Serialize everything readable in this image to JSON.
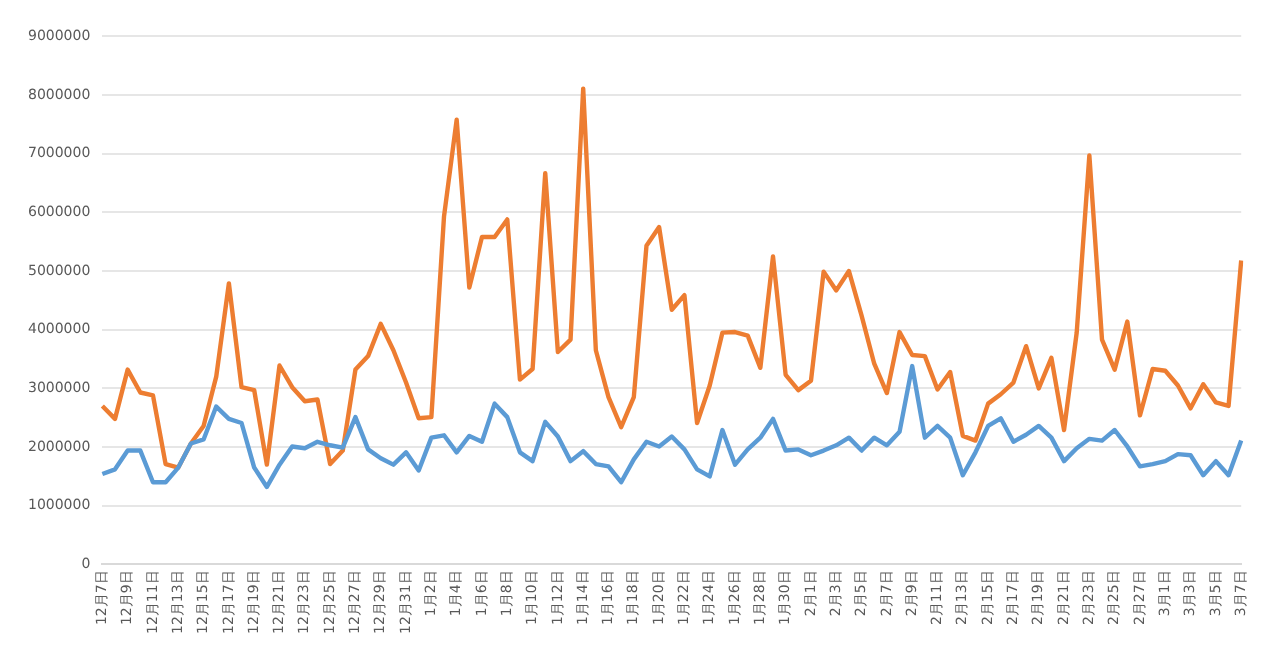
{
  "chart_data": {
    "type": "line",
    "categories": [
      "12月7日",
      null,
      "12月9日",
      null,
      "12月11日",
      null,
      "12月13日",
      null,
      "12月15日",
      null,
      "12月17日",
      null,
      "12月19日",
      null,
      "12月21日",
      null,
      "12月23日",
      null,
      "12月25日",
      null,
      "12月27日",
      null,
      "12月29日",
      null,
      "12月31日",
      null,
      "1月2日",
      null,
      "1月4日",
      null,
      "1月6日",
      null,
      "1月8日",
      null,
      "1月10日",
      null,
      "1月12日",
      null,
      "1月14日",
      null,
      "1月16日",
      null,
      "1月18日",
      null,
      "1月20日",
      null,
      "1月22日",
      null,
      "1月24日",
      null,
      "1月26日",
      null,
      "1月28日",
      null,
      "1月30日",
      null,
      "2月1日",
      null,
      "2月3日",
      null,
      "2月5日",
      null,
      "2月7日",
      null,
      "2月9日",
      null,
      "2月11日",
      null,
      "2月13日",
      null,
      "2月15日",
      null,
      "2月17日",
      null,
      "2月19日",
      null,
      "2月21日",
      null,
      "2月23日",
      null,
      "2月25日",
      null,
      "2月27日",
      null,
      "3月1日",
      null,
      "3月3日",
      null,
      "3月5日",
      null,
      "3月7日"
    ],
    "series": [
      {
        "color": "#5b9bd5",
        "values": [
          1540000,
          1620000,
          1940000,
          1940000,
          1400000,
          1400000,
          1650000,
          2060000,
          2130000,
          2690000,
          2480000,
          2410000,
          1650000,
          1320000,
          1700000,
          2010000,
          1980000,
          2090000,
          2030000,
          1990000,
          2510000,
          1960000,
          1810000,
          1700000,
          1910000,
          1600000,
          2160000,
          2200000,
          1910000,
          2190000,
          2090000,
          2740000,
          2510000,
          1910000,
          1760000,
          2430000,
          2180000,
          1760000,
          1930000,
          1710000,
          1670000,
          1400000,
          1790000,
          2090000,
          2010000,
          2180000,
          1960000,
          1620000,
          1500000,
          2290000,
          1700000,
          1960000,
          2160000,
          2480000,
          1940000,
          1960000,
          1860000,
          1940000,
          2030000,
          2160000,
          1940000,
          2160000,
          2030000,
          2260000,
          3380000,
          2160000,
          2360000,
          2160000,
          1520000,
          1910000,
          2360000,
          2490000,
          2090000,
          2210000,
          2360000,
          2160000,
          1760000,
          1980000,
          2140000,
          2110000,
          2290000,
          2010000,
          1670000,
          1710000,
          1760000,
          1880000,
          1860000,
          1520000,
          1760000,
          1520000,
          2110000
        ]
      },
      {
        "color": "#ed7d31",
        "values": [
          2700000,
          2480000,
          3320000,
          2930000,
          2880000,
          1710000,
          1650000,
          2060000,
          2360000,
          3200000,
          4790000,
          3020000,
          2970000,
          1700000,
          3390000,
          3020000,
          2780000,
          2810000,
          1710000,
          1940000,
          3320000,
          3550000,
          4100000,
          3650000,
          3100000,
          2490000,
          2510000,
          5930000,
          7580000,
          4720000,
          5580000,
          5580000,
          5880000,
          3150000,
          3330000,
          6670000,
          3620000,
          3830000,
          8110000,
          3650000,
          2850000,
          2340000,
          2850000,
          5430000,
          5750000,
          4340000,
          4590000,
          2410000,
          3050000,
          3950000,
          3960000,
          3900000,
          3350000,
          5250000,
          3230000,
          2970000,
          3130000,
          4990000,
          4670000,
          5000000,
          4240000,
          3420000,
          2920000,
          3960000,
          3570000,
          3550000,
          2980000,
          3280000,
          2190000,
          2110000,
          2740000,
          2900000,
          3100000,
          3720000,
          3000000,
          3520000,
          2290000,
          3950000,
          6970000,
          3830000,
          3320000,
          4140000,
          2540000,
          3330000,
          3300000,
          3050000,
          2660000,
          3070000,
          2760000,
          2700000,
          5180000
        ]
      }
    ],
    "ylim": [
      0,
      9000000
    ],
    "yticks": [
      0,
      1000000,
      2000000,
      3000000,
      4000000,
      5000000,
      6000000,
      7000000,
      8000000,
      9000000
    ],
    "grid": "y",
    "marker": "none",
    "line_style": "solid"
  }
}
